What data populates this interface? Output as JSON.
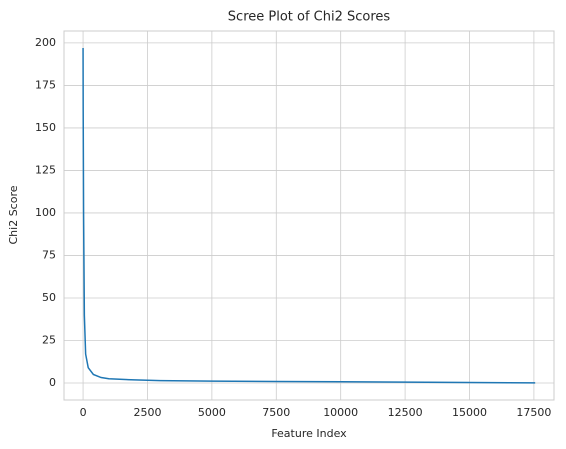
{
  "chart_data": {
    "type": "line",
    "title": "Scree Plot of Chi2 Scores",
    "x_label": "Feature Index",
    "y_label": "Chi2 Score",
    "x": [
      0,
      5,
      20,
      50,
      100,
      200,
      400,
      700,
      1000,
      2000,
      3000,
      5000,
      7500,
      10000,
      12500,
      15000,
      17550
    ],
    "values": [
      197,
      160,
      100,
      40,
      17,
      9,
      5,
      3.2,
      2.5,
      1.8,
      1.4,
      1.1,
      0.9,
      0.7,
      0.5,
      0.3,
      0.1
    ],
    "color": "#1f77b4",
    "xlim": [
      -740,
      18280
    ],
    "xticks": [
      0,
      2500,
      5000,
      7500,
      10000,
      12500,
      15000,
      17500
    ],
    "ylim": [
      -10,
      207
    ],
    "yticks": [
      0,
      25,
      50,
      75,
      100,
      125,
      150,
      175,
      200
    ],
    "grid": true
  }
}
